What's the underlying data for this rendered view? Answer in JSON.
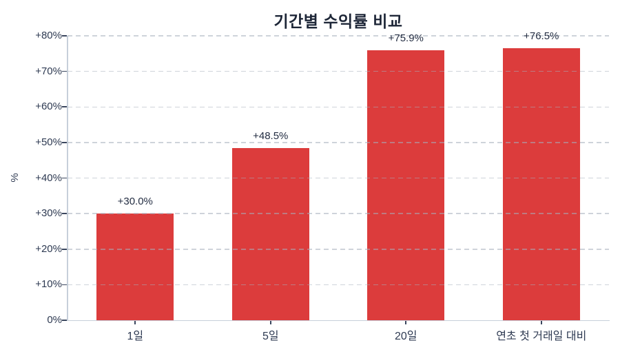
{
  "chart_data": {
    "type": "bar",
    "title": "기간별 수익률 비교",
    "categories": [
      "1일",
      "5일",
      "20일",
      "연초 첫 거래일 대비"
    ],
    "values": [
      30.0,
      48.5,
      75.9,
      76.5
    ],
    "bar_labels": [
      "+30.0%",
      "+48.5%",
      "+75.9%",
      "+76.5%"
    ],
    "xlabel": "",
    "ylabel": "%",
    "ylim": [
      0,
      80
    ],
    "ytick_step": 10,
    "ytick_labels": [
      "0%",
      "+10%",
      "+20%",
      "+30%",
      "+40%",
      "+50%",
      "+60%",
      "+70%",
      "+80%"
    ],
    "grid": "horizontal-dashed-over-bars",
    "legend": "none",
    "colors": {
      "bar": "#dc3c3c",
      "title_text": "#1d2637",
      "tick_text": "#2e3a52",
      "spine": "#c6cfda",
      "tick_mark": "#39455d",
      "gridline": "rgba(166,175,188,0.55)",
      "background": "#ffffff"
    }
  }
}
